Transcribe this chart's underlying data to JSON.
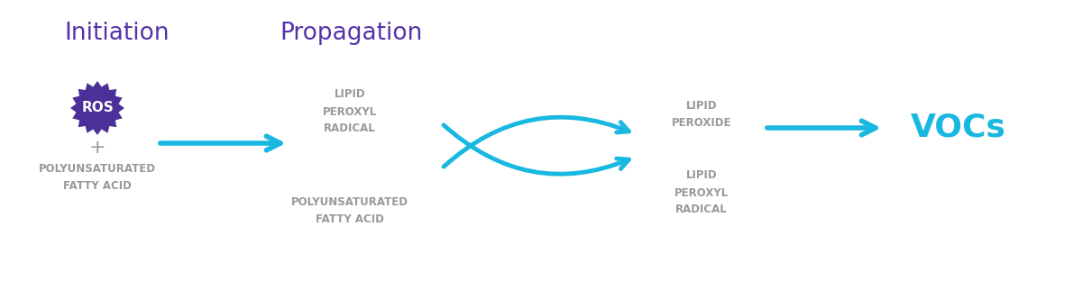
{
  "bg_color": "#ffffff",
  "initiation_label": "Initiation",
  "initiation_color": "#5533aa",
  "propagation_label": "Propagation",
  "propagation_color": "#5533aa",
  "ros_label": "ROS",
  "ros_color": "#4a3098",
  "ros_text_color": "#ffffff",
  "plus_label": "+",
  "pufa_label1": "POLYUNSATURATED\nFATTY ACID",
  "lipid_peroxyl_label": "LIPID\nPEROXYL\nRADICAL",
  "lipid_peroxide_label": "LIPID\nPEROXIDE",
  "pufa_label2": "POLYUNSATURATED\nFATTY ACID",
  "lipid_peroxyl2_label": "LIPID\nPEROXYL\nRADICAL",
  "vocs_label": "VOCs",
  "gray_text_color": "#999999",
  "cyan_color": "#18b8e0",
  "figsize": [
    12.0,
    3.42
  ],
  "dpi": 100
}
